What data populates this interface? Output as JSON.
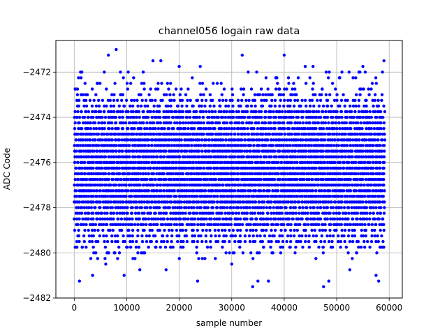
{
  "chart_data": {
    "type": "scatter",
    "title": "channel056 logain raw data",
    "xlabel": "sample number",
    "ylabel": "ADC Code",
    "xlim": [
      -3500,
      62500
    ],
    "ylim": [
      -2482,
      -2470.6
    ],
    "xticks": [
      0,
      10000,
      20000,
      30000,
      40000,
      50000,
      60000
    ],
    "xtick_labels": [
      "0",
      "10000",
      "20000",
      "30000",
      "40000",
      "50000",
      "60000"
    ],
    "yticks": [
      -2482,
      -2480,
      -2478,
      -2476,
      -2474,
      -2472
    ],
    "ytick_labels": [
      "−2482",
      "−2480",
      "−2478",
      "−2476",
      "−2474",
      "−2472"
    ],
    "grid": true,
    "marker_color": "#0000ff",
    "x_range": [
      0,
      59200
    ],
    "y_quantization_step": 0.25,
    "dense_band": [
      -2479.5,
      -2473.25
    ],
    "outliers": [
      {
        "x": 1000,
        "y": -2481.25
      },
      {
        "x": 3500,
        "y": -2481.0
      },
      {
        "x": 6000,
        "y": -2480.5
      },
      {
        "x": 9500,
        "y": -2481.0
      },
      {
        "x": 23500,
        "y": -2481.25
      },
      {
        "x": 34000,
        "y": -2481.5
      },
      {
        "x": 35000,
        "y": -2481.25
      },
      {
        "x": 37000,
        "y": -2481.25
      },
      {
        "x": 47500,
        "y": -2481.5
      },
      {
        "x": 48500,
        "y": -2481.25
      },
      {
        "x": 57500,
        "y": -2481.0
      },
      {
        "x": 58000,
        "y": -2481.25
      },
      {
        "x": 30000,
        "y": -2480.5
      },
      {
        "x": 12500,
        "y": -2480.75
      },
      {
        "x": 17500,
        "y": -2480.75
      },
      {
        "x": 52500,
        "y": -2480.75
      },
      {
        "x": 8000,
        "y": -2471.0
      },
      {
        "x": 6500,
        "y": -2471.25
      },
      {
        "x": 32000,
        "y": -2471.25
      },
      {
        "x": 40000,
        "y": -2471.25
      },
      {
        "x": 59000,
        "y": -2471.5
      },
      {
        "x": 1200,
        "y": -2472.0
      },
      {
        "x": 15000,
        "y": -2471.5
      },
      {
        "x": 16500,
        "y": -2471.5
      },
      {
        "x": 20000,
        "y": -2471.75
      },
      {
        "x": 24000,
        "y": -2471.75
      },
      {
        "x": 44000,
        "y": -2471.75
      },
      {
        "x": 55000,
        "y": -2471.75
      },
      {
        "x": 45500,
        "y": -2471.75
      },
      {
        "x": 51000,
        "y": -2472.0
      }
    ]
  }
}
